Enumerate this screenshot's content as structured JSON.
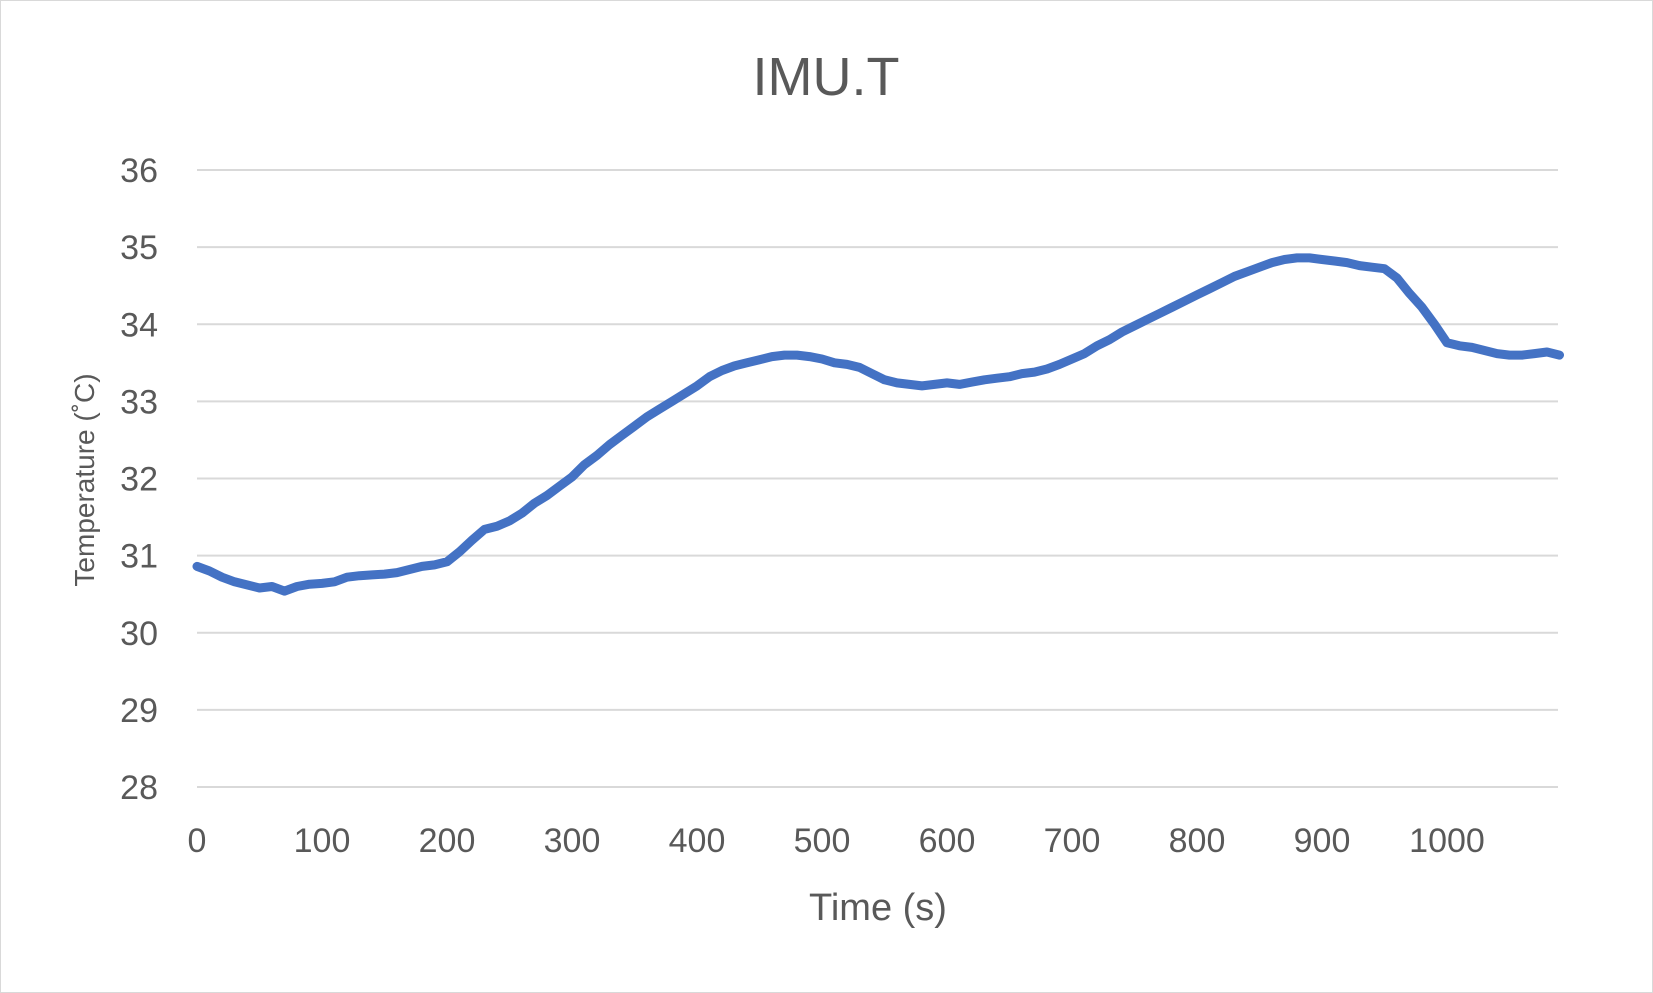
{
  "chart_data": {
    "type": "line",
    "title": "IMU.T",
    "xlabel": "Time (s)",
    "ylabel": "Temperature (˚C)",
    "xlim": [
      0,
      1090
    ],
    "ylim": [
      28,
      36
    ],
    "x_ticks": [
      "0",
      "100",
      "200",
      "300",
      "400",
      "500",
      "600",
      "700",
      "800",
      "900",
      "1000"
    ],
    "y_ticks": [
      "28",
      "29",
      "30",
      "31",
      "32",
      "33",
      "34",
      "35",
      "36"
    ],
    "grid": true,
    "legend": "none",
    "color": "#4472c4",
    "series": [
      {
        "x": [
          0,
          10,
          20,
          30,
          40,
          50,
          60,
          70,
          80,
          90,
          100,
          110,
          120,
          130,
          140,
          150,
          160,
          170,
          180,
          190,
          200,
          210,
          220,
          230,
          240,
          250,
          260,
          270,
          280,
          290,
          300,
          310,
          320,
          330,
          340,
          350,
          360,
          370,
          380,
          390,
          400,
          410,
          420,
          430,
          440,
          450,
          460,
          470,
          480,
          490,
          500,
          510,
          520,
          530,
          540,
          550,
          560,
          570,
          580,
          590,
          600,
          610,
          620,
          630,
          640,
          650,
          660,
          670,
          680,
          690,
          700,
          710,
          720,
          730,
          740,
          750,
          760,
          770,
          780,
          790,
          800,
          810,
          820,
          830,
          840,
          850,
          860,
          870,
          880,
          890,
          900,
          910,
          920,
          930,
          940,
          950,
          960,
          970,
          980,
          990,
          1000,
          1010,
          1020,
          1030,
          1040,
          1050,
          1060,
          1070,
          1080,
          1090
        ],
        "y": [
          30.86,
          30.8,
          30.72,
          30.66,
          30.62,
          30.58,
          30.6,
          30.54,
          30.6,
          30.63,
          30.64,
          30.66,
          30.72,
          30.74,
          30.75,
          30.76,
          30.78,
          30.82,
          30.86,
          30.88,
          30.92,
          31.05,
          31.2,
          31.34,
          31.38,
          31.45,
          31.55,
          31.68,
          31.78,
          31.9,
          32.02,
          32.18,
          32.3,
          32.44,
          32.56,
          32.68,
          32.8,
          32.9,
          33.0,
          33.1,
          33.2,
          33.32,
          33.4,
          33.46,
          33.5,
          33.54,
          33.58,
          33.6,
          33.6,
          33.58,
          33.55,
          33.5,
          33.48,
          33.44,
          33.36,
          33.28,
          33.24,
          33.22,
          33.2,
          33.22,
          33.24,
          33.22,
          33.25,
          33.28,
          33.3,
          33.32,
          33.36,
          33.38,
          33.42,
          33.48,
          33.55,
          33.62,
          33.72,
          33.8,
          33.9,
          33.98,
          34.06,
          34.14,
          34.22,
          34.3,
          34.38,
          34.46,
          34.54,
          34.62,
          34.68,
          34.74,
          34.8,
          34.84,
          34.86,
          34.86,
          34.84,
          34.82,
          34.8,
          34.76,
          34.74,
          34.72,
          34.6,
          34.4,
          34.22,
          34.0,
          33.76,
          33.72,
          33.7,
          33.66,
          33.62,
          33.6,
          33.6,
          33.62,
          33.64,
          33.6
        ]
      }
    ]
  }
}
